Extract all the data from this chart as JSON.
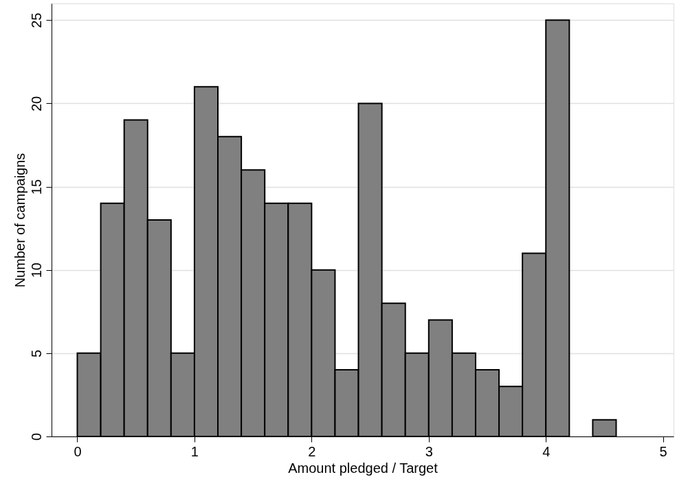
{
  "chart_data": {
    "type": "histogram",
    "xlabel": "Amount pledged / Target",
    "ylabel": "Number of campaigns",
    "bins": [
      0,
      0.2,
      0.4,
      0.6,
      0.8,
      1.0,
      1.2,
      1.4,
      1.6,
      1.8,
      2.0,
      2.2,
      2.4,
      2.6,
      2.8,
      3.0,
      3.2,
      3.4,
      3.6,
      3.8,
      4.0,
      4.2,
      4.4,
      4.6
    ],
    "values": [
      5,
      14,
      19,
      13,
      5,
      21,
      18,
      16,
      14,
      14,
      10,
      4,
      20,
      8,
      5,
      7,
      5,
      4,
      3,
      11,
      25,
      0,
      1
    ],
    "color": "#808080",
    "xlim": [
      -0.22,
      5.09
    ],
    "ylim": [
      0,
      26
    ],
    "xticks": [
      0,
      1,
      2,
      3,
      4,
      5
    ],
    "yticks": [
      0,
      5,
      10,
      15,
      20,
      25
    ],
    "grid": "y"
  }
}
